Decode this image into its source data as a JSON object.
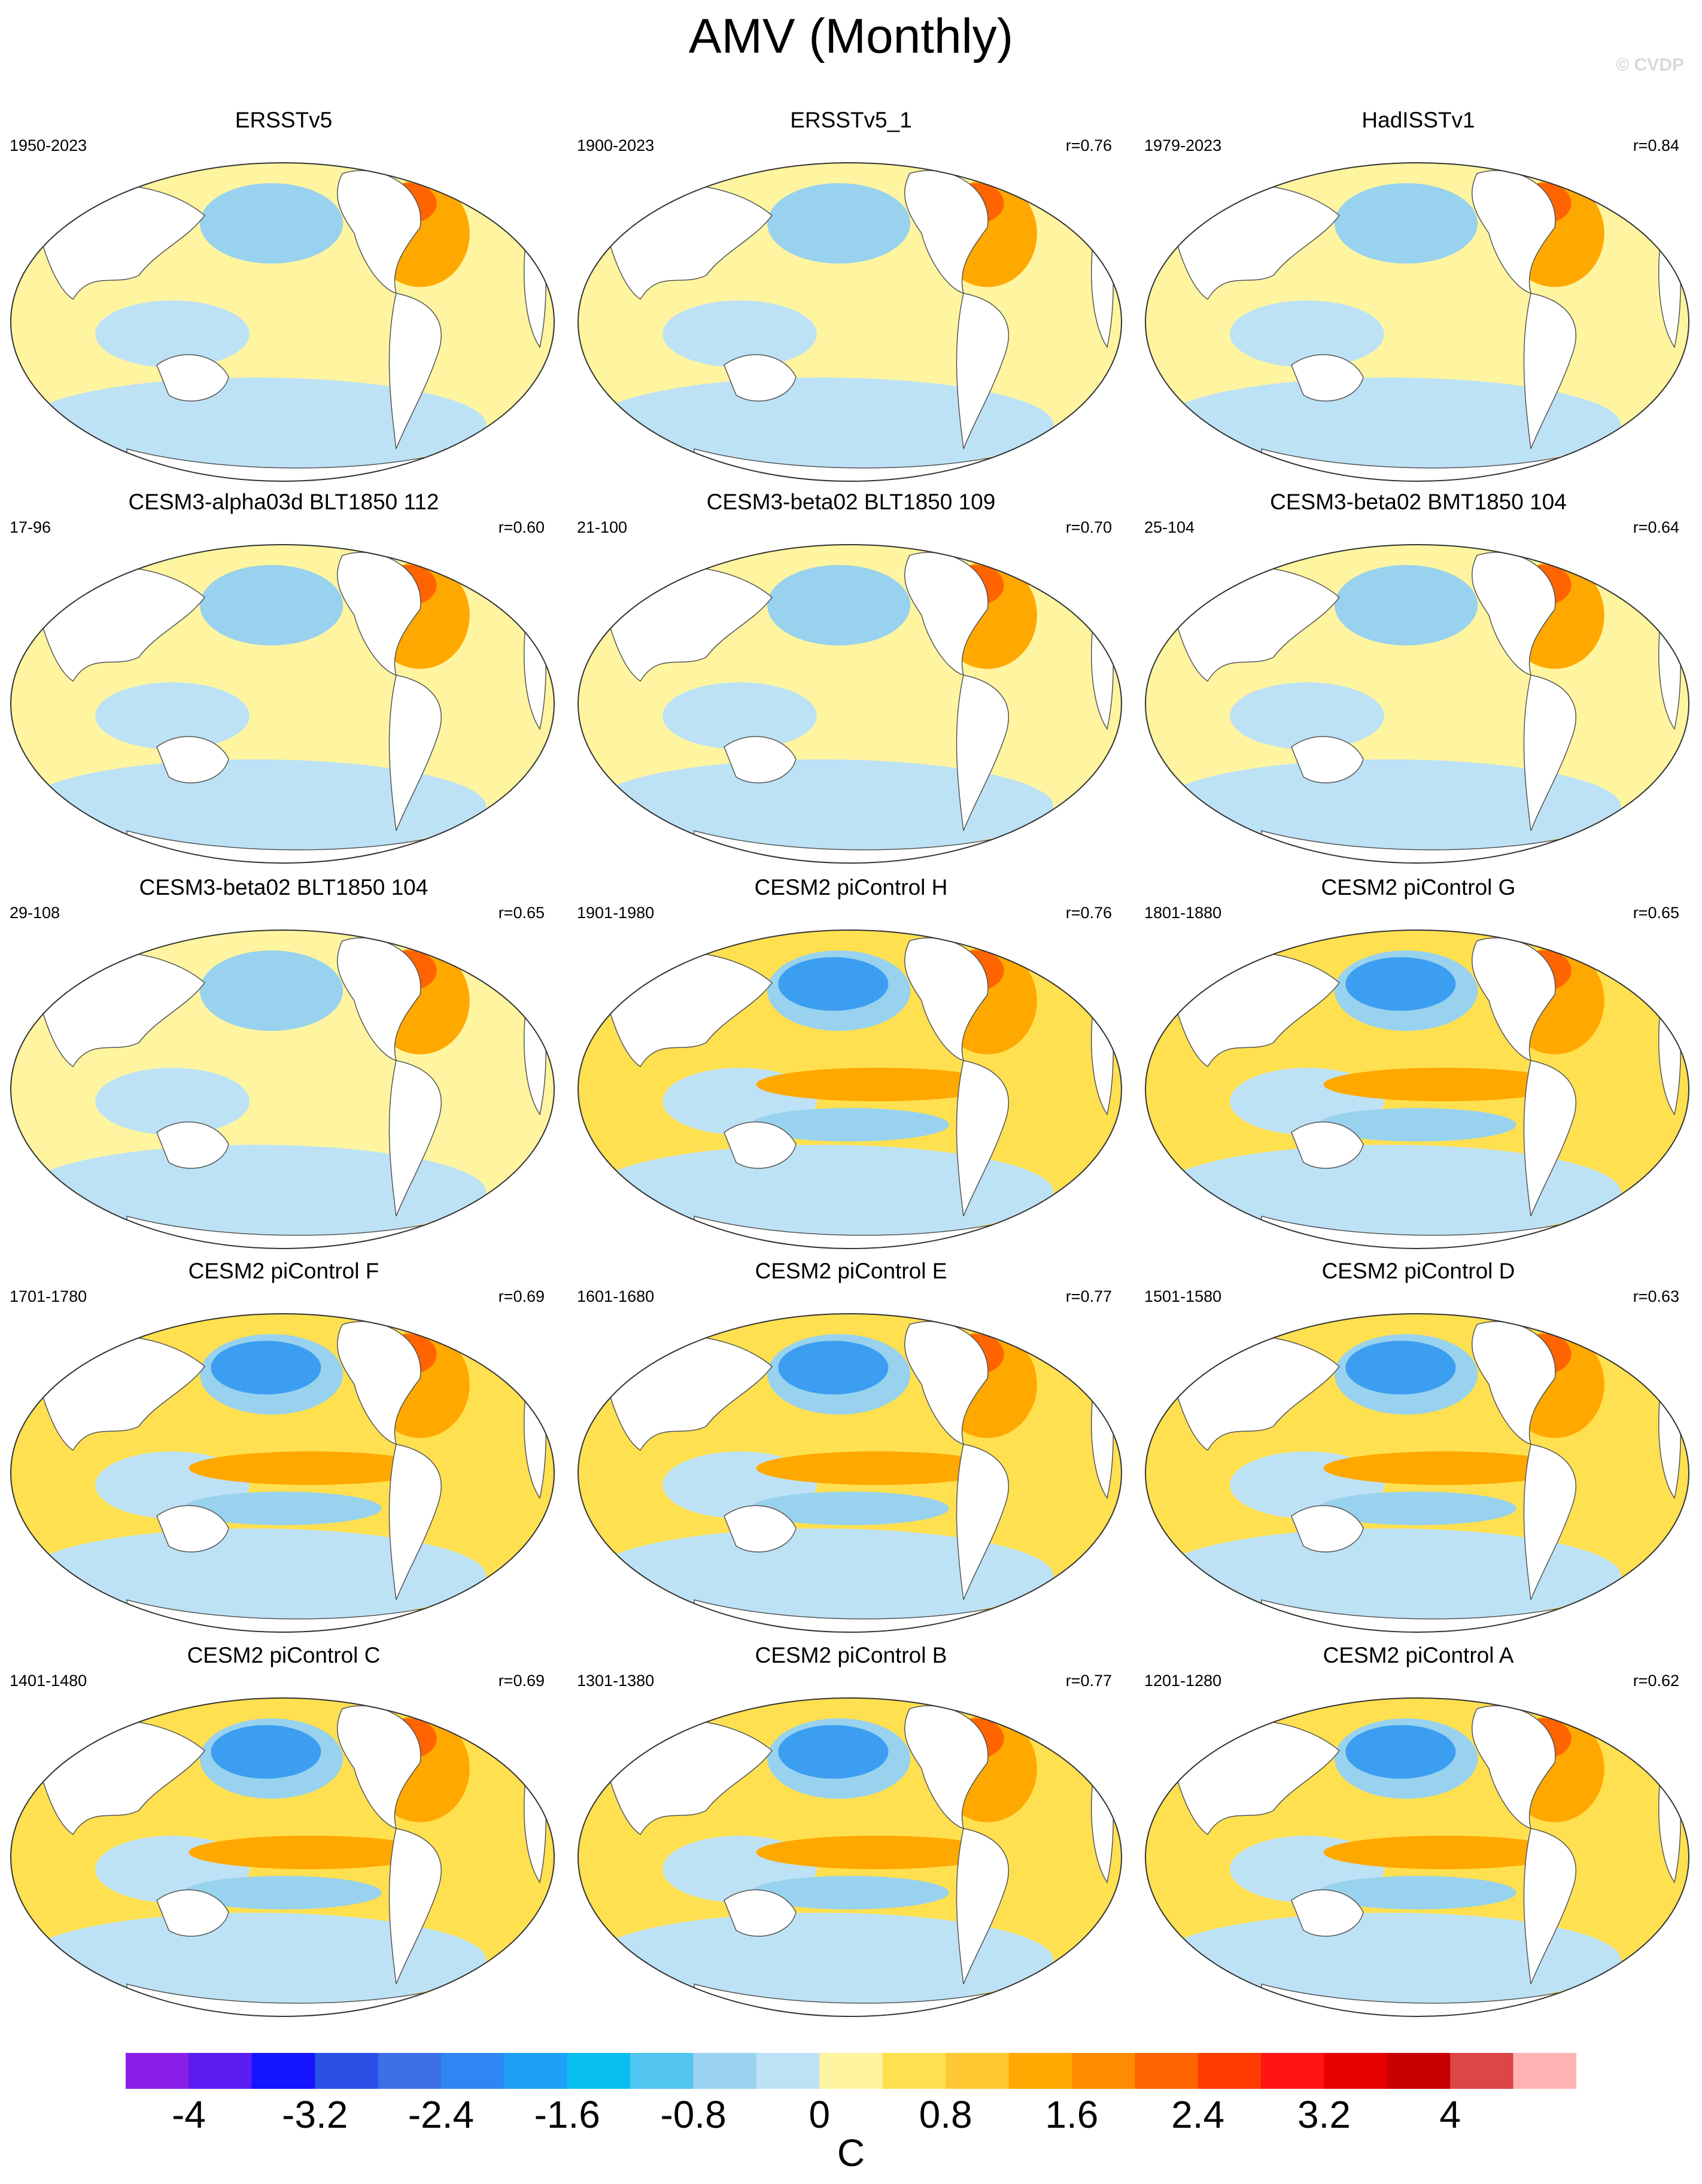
{
  "title": "AMV (Monthly)",
  "credit": "© CVDP",
  "panels": [
    {
      "title": "ERSSTv5",
      "range": "1950-2023",
      "corr": ""
    },
    {
      "title": "ERSSTv5_1",
      "range": "1900-2023",
      "corr": "r=0.76"
    },
    {
      "title": "HadISSTv1",
      "range": "1979-2023",
      "corr": "r=0.84"
    },
    {
      "title": "CESM3-alpha03d BLT1850 112",
      "range": "17-96",
      "corr": "r=0.60"
    },
    {
      "title": "CESM3-beta02 BLT1850 109",
      "range": "21-100",
      "corr": "r=0.70"
    },
    {
      "title": "CESM3-beta02 BMT1850 104",
      "range": "25-104",
      "corr": "r=0.64"
    },
    {
      "title": "CESM3-beta02 BLT1850 104",
      "range": "29-108",
      "corr": "r=0.65"
    },
    {
      "title": "CESM2 piControl H",
      "range": "1901-1980",
      "corr": "r=0.76"
    },
    {
      "title": "CESM2 piControl G",
      "range": "1801-1880",
      "corr": "r=0.65"
    },
    {
      "title": "CESM2 piControl F",
      "range": "1701-1780",
      "corr": "r=0.69"
    },
    {
      "title": "CESM2 piControl E",
      "range": "1601-1680",
      "corr": "r=0.77"
    },
    {
      "title": "CESM2 piControl D",
      "range": "1501-1580",
      "corr": "r=0.63"
    },
    {
      "title": "CESM2 piControl C",
      "range": "1401-1480",
      "corr": "r=0.69"
    },
    {
      "title": "CESM2 piControl B",
      "range": "1301-1380",
      "corr": "r=0.77"
    },
    {
      "title": "CESM2 piControl A",
      "range": "1201-1280",
      "corr": "r=0.62"
    }
  ],
  "colorbar": {
    "unit": "C",
    "colors": [
      "#8a1ee8",
      "#5a1cf0",
      "#1414ff",
      "#2a50e6",
      "#3c6ee6",
      "#2f86f2",
      "#1ea0f5",
      "#0abef0",
      "#52c6f0",
      "#98d2ee",
      "#bde2f6",
      "#fff5a0",
      "#ffe050",
      "#ffc832",
      "#ffa800",
      "#ff8c00",
      "#ff6400",
      "#ff3c00",
      "#ff1414",
      "#e60000",
      "#c80000",
      "#dc4646",
      "#ffb4b4"
    ],
    "labels": [
      "-4",
      "-3.2",
      "-2.4",
      "-1.6",
      "-0.8",
      "0",
      "0.8",
      "1.6",
      "2.4",
      "3.2",
      "4"
    ]
  }
}
